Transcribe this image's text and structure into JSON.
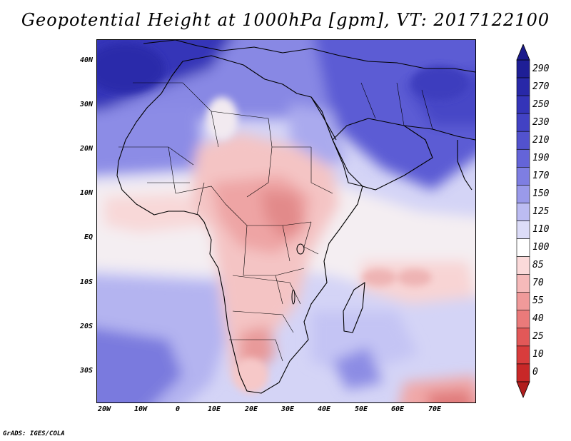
{
  "title": "Geopotential Height at 1000hPa [gpm], VT: 2017122100",
  "credit": "GrADS: IGES/COLA",
  "map": {
    "variable": "Geopotential Height",
    "level": "1000hPa",
    "units": "gpm",
    "valid_time": "2017122100",
    "lon_range": [
      -23,
      80
    ],
    "lat_range": [
      -37,
      45
    ],
    "lat_ticks": [
      {
        "value": 40,
        "label": "40N"
      },
      {
        "value": 30,
        "label": "30N"
      },
      {
        "value": 20,
        "label": "20N"
      },
      {
        "value": 10,
        "label": "10N"
      },
      {
        "value": 0,
        "label": "EQ"
      },
      {
        "value": -10,
        "label": "10S"
      },
      {
        "value": -20,
        "label": "20S"
      },
      {
        "value": -30,
        "label": "30S"
      }
    ],
    "lon_ticks": [
      {
        "value": -20,
        "label": "20W"
      },
      {
        "value": -10,
        "label": "10W"
      },
      {
        "value": 0,
        "label": "0"
      },
      {
        "value": 10,
        "label": "10E"
      },
      {
        "value": 20,
        "label": "20E"
      },
      {
        "value": 30,
        "label": "30E"
      },
      {
        "value": 40,
        "label": "40E"
      },
      {
        "value": 50,
        "label": "50E"
      },
      {
        "value": 60,
        "label": "60E"
      },
      {
        "value": 70,
        "label": "70E"
      }
    ]
  },
  "colorbar": {
    "levels": [
      {
        "label": "290",
        "color": "#1e1e96"
      },
      {
        "label": "270",
        "color": "#2828a8"
      },
      {
        "label": "250",
        "color": "#3434b8"
      },
      {
        "label": "230",
        "color": "#4242c4"
      },
      {
        "label": "210",
        "color": "#5252ce"
      },
      {
        "label": "190",
        "color": "#6464d8"
      },
      {
        "label": "170",
        "color": "#7e7ee2"
      },
      {
        "label": "150",
        "color": "#9a9aea"
      },
      {
        "label": "125",
        "color": "#bcbcf2"
      },
      {
        "label": "110",
        "color": "#dcdcf8"
      },
      {
        "label": "100",
        "color": "#ffffff"
      },
      {
        "label": "85",
        "color": "#fbdada"
      },
      {
        "label": "70",
        "color": "#f6baba"
      },
      {
        "label": "55",
        "color": "#f09a9a"
      },
      {
        "label": "40",
        "color": "#ea7a7a"
      },
      {
        "label": "25",
        "color": "#e25858"
      },
      {
        "label": "10",
        "color": "#d83c3c"
      },
      {
        "label": "0",
        "color": "#c82828"
      }
    ],
    "bottom_color": "#b01e1e",
    "top_color": "#1a1a8c"
  }
}
